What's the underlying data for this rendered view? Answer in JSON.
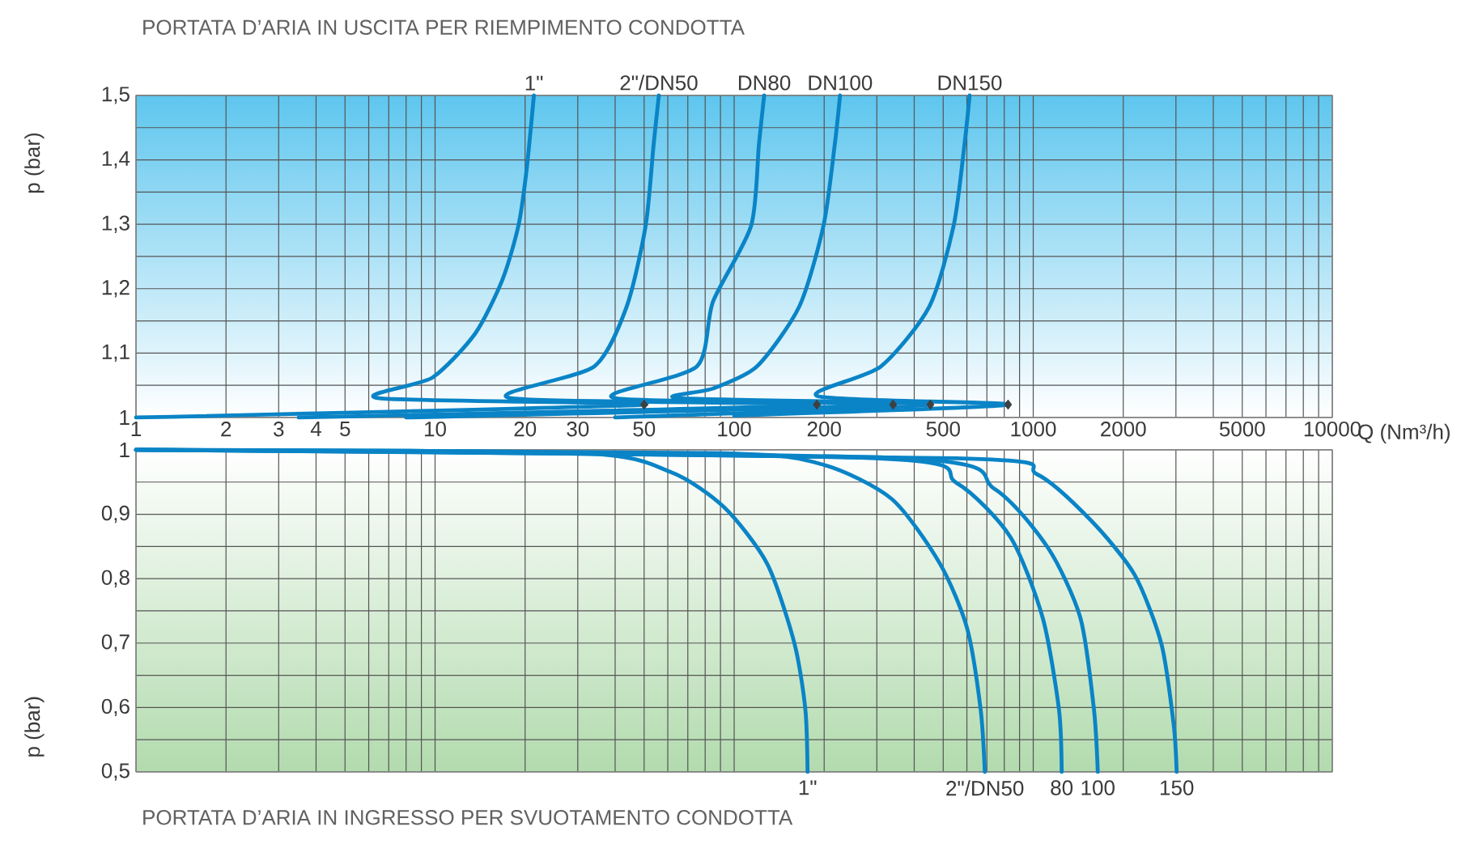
{
  "chart_data": [
    {
      "type": "line",
      "title": "PORTATA D’ARIA IN USCITA PER RIEMPIMENTO CONDOTTA",
      "xlabel": "Q (Nm³/h)",
      "ylabel": "p (bar)",
      "log": "x",
      "grid": true,
      "line_style": "solid",
      "xlim": [
        1,
        10000
      ],
      "xticks": [
        1,
        2,
        3,
        4,
        5,
        10,
        20,
        30,
        50,
        100,
        200,
        500,
        1000,
        2000,
        5000,
        10000
      ],
      "ylim": [
        1,
        1.5
      ],
      "yticks": [
        1,
        {
          "value": 1.1,
          "label": "1,1"
        },
        {
          "value": 1.2,
          "label": "1,2"
        },
        {
          "value": 1.3,
          "label": "1,3"
        },
        {
          "value": 1.4,
          "label": "1,4"
        },
        {
          "value": 1.5,
          "label": "1,5"
        }
      ],
      "series": [
        {
          "name": "1\"",
          "color": "#0a84c6",
          "x": [
            1,
            50,
            6.5,
            9.8,
            13.6,
            16.8,
            19,
            20.2,
            21.4
          ],
          "values": [
            1.0,
            1.02,
            1.03,
            1.062,
            1.13,
            1.214,
            1.298,
            1.382,
            1.5
          ]
        },
        {
          "name": "2\"/DN50",
          "color": "#0a84c6",
          "x": [
            3.5,
            189,
            17.9,
            34,
            43.7,
            50.6,
            53.8,
            56
          ],
          "values": [
            1.0,
            1.02,
            1.03,
            1.079,
            1.172,
            1.298,
            1.424,
            1.5
          ]
        },
        {
          "name": "DN80",
          "color": "#0a84c6",
          "x": [
            8,
            340,
            40,
            75,
            85,
            114,
            121,
            126
          ],
          "values": [
            1.0,
            1.02,
            1.03,
            1.079,
            1.18,
            1.298,
            1.424,
            1.5
          ]
        },
        {
          "name": "DN100",
          "color": "#0a84c6",
          "x": [
            40,
            453,
            66,
            85,
            119,
            165,
            199,
            217,
            226
          ],
          "values": [
            1.0,
            1.02,
            1.03,
            1.045,
            1.079,
            1.172,
            1.298,
            1.424,
            1.5
          ]
        },
        {
          "name": "DN150",
          "color": "#0a84c6",
          "x": [
            100,
            824,
            191,
            309,
            449,
            542,
            589,
            613
          ],
          "values": [
            1.003,
            1.02,
            1.033,
            1.079,
            1.172,
            1.298,
            1.424,
            1.5
          ]
        },
        {
          "type": "scatter",
          "marker": "diamond",
          "color": "#404040",
          "x": [
            50,
            189,
            340,
            453,
            824
          ],
          "values": [
            1.02,
            1.02,
            1.02,
            1.02,
            1.02
          ]
        }
      ]
    },
    {
      "type": "line",
      "title": "PORTATA D’ARIA IN INGRESSO PER SVUOTAMENTO CONDOTTA",
      "ylabel": "p (bar)",
      "log": "x",
      "grid": true,
      "line_style": "solid",
      "tick_labels": "y",
      "xlim": [
        1,
        10000
      ],
      "xticks": [
        1,
        2,
        3,
        4,
        5,
        10,
        20,
        30,
        50,
        100,
        200,
        500,
        1000,
        2000,
        5000,
        10000
      ],
      "ylim": [
        0.5,
        1
      ],
      "yticks": [
        {
          "value": 0.5,
          "label": "0,5"
        },
        {
          "value": 0.6,
          "label": "0,6"
        },
        {
          "value": 0.7,
          "label": "0,7"
        },
        {
          "value": 0.8,
          "label": "0,8"
        },
        {
          "value": 0.9,
          "label": "0,9"
        },
        1
      ],
      "series": [
        {
          "name": "1\"",
          "color": "#0a84c6",
          "x": [
            1,
            30,
            61,
            92.5,
            129,
            159,
            173,
            176
          ],
          "values": [
            1.0,
            0.995,
            0.966,
            0.911,
            0.823,
            0.7,
            0.597,
            0.5
          ]
        },
        {
          "name": "2\"/DN50",
          "color": "#0a84c6",
          "x": [
            1,
            85,
            195,
            336,
            488,
            601,
            667,
            689
          ],
          "values": [
            1.0,
            0.995,
            0.978,
            0.924,
            0.823,
            0.723,
            0.597,
            0.5
          ]
        },
        {
          "name": "80",
          "color": "#0a84c6",
          "x": [
            1,
            296,
            553,
            838,
            1076,
            1219,
            1245
          ],
          "values": [
            1.0,
            0.987,
            0.949,
            0.865,
            0.739,
            0.597,
            0.5
          ]
        },
        {
          "name": "100",
          "color": "#0a84c6",
          "x": [
            1,
            365,
            739,
            1120,
            1438,
            1596,
            1644
          ],
          "values": [
            1.0,
            0.987,
            0.94,
            0.848,
            0.739,
            0.597,
            0.5
          ]
        },
        {
          "name": "150",
          "color": "#0a84c6",
          "x": [
            1,
            553,
            1031,
            1563,
            2183,
            2685,
            2951,
            3017
          ],
          "values": [
            1.0,
            0.987,
            0.962,
            0.89,
            0.806,
            0.698,
            0.572,
            0.5
          ]
        }
      ]
    }
  ]
}
